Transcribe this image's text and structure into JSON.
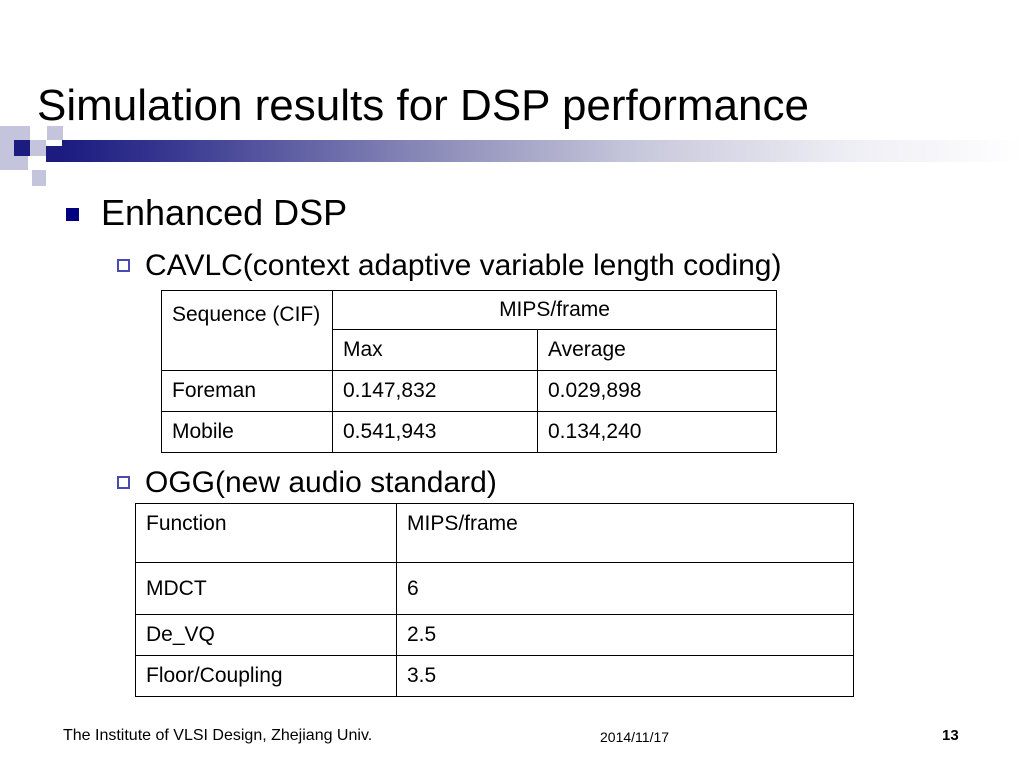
{
  "slide": {
    "title": "Simulation results for DSP performance",
    "bullet_main": "Enhanced DSP",
    "sub1": "CAVLC(context adaptive variable length coding)",
    "sub2": "OGG(new audio standard)"
  },
  "table1": {
    "seq_header": "Sequence (CIF)",
    "mips_header": "MIPS/frame",
    "max_header": "Max",
    "avg_header": "Average",
    "rows": [
      {
        "name": "Foreman",
        "max": "0.147,832",
        "avg": "0.029,898"
      },
      {
        "name": "Mobile",
        "max": "0.541,943",
        "avg": "0.134,240"
      }
    ]
  },
  "table2": {
    "col1_header": "Function",
    "col2_header": "MIPS/frame",
    "rows": [
      {
        "name": "MDCT",
        "value": "6"
      },
      {
        "name": "De_VQ",
        "value": "2.5"
      },
      {
        "name": "Floor/Coupling",
        "value": "3.5"
      }
    ]
  },
  "footer": {
    "institute": "The Institute of VLSI Design, Zhejiang Univ.",
    "date": "2014/11/17",
    "page": "13"
  },
  "colors": {
    "accent_dark": "#1b1b80",
    "accent_light": "#c4c4dc",
    "bullet": "#000080"
  }
}
